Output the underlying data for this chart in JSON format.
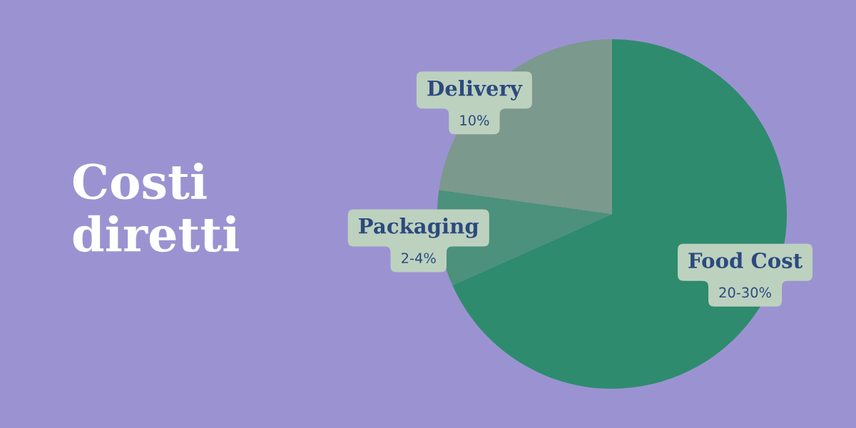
{
  "chart_data": {
    "type": "pie",
    "title": "Costi\ndiretti",
    "categories": [
      "Food Cost",
      "Packaging",
      "Delivery"
    ],
    "values": [
      68.3,
      8.9,
      22.8
    ],
    "colors": [
      "#2e8b6e",
      "#4b917b",
      "#7b998d"
    ],
    "annotations": [
      "20-30%",
      "2-4%",
      "10%"
    ]
  }
}
